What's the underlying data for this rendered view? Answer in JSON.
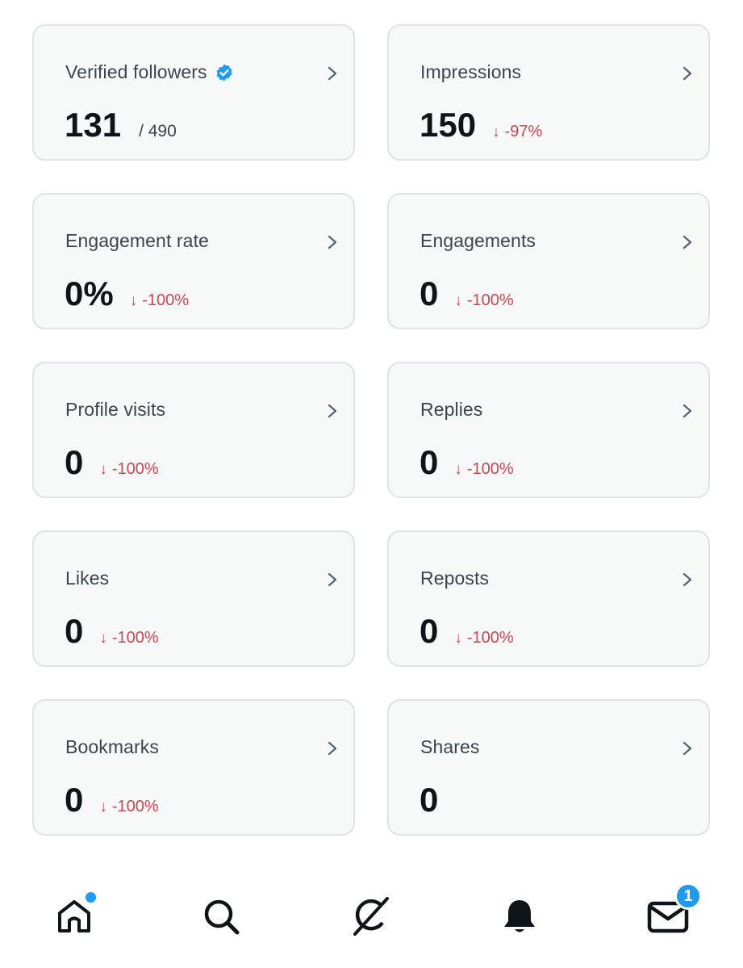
{
  "cards": [
    {
      "title": "Verified followers",
      "value": "131",
      "sub": "/ 490",
      "delta": "",
      "verified": true
    },
    {
      "title": "Impressions",
      "value": "150",
      "sub": "",
      "delta": "-97%"
    },
    {
      "title": "Engagement rate",
      "value": "0%",
      "sub": "",
      "delta": "-100%"
    },
    {
      "title": "Engagements",
      "value": "0",
      "sub": "",
      "delta": "-100%"
    },
    {
      "title": "Profile visits",
      "value": "0",
      "sub": "",
      "delta": "-100%"
    },
    {
      "title": "Replies",
      "value": "0",
      "sub": "",
      "delta": "-100%"
    },
    {
      "title": "Likes",
      "value": "0",
      "sub": "",
      "delta": "-100%"
    },
    {
      "title": "Reposts",
      "value": "0",
      "sub": "",
      "delta": "-100%"
    },
    {
      "title": "Bookmarks",
      "value": "0",
      "sub": "",
      "delta": "-100%"
    },
    {
      "title": "Shares",
      "value": "0",
      "sub": "",
      "delta": ""
    }
  ],
  "delta_arrow": "↓",
  "colors": {
    "negative": "#d04452",
    "accent": "#1d9bf0",
    "card_bg": "#f7f9f9"
  },
  "tabbar": {
    "home_icon": "home-icon",
    "search_icon": "search-icon",
    "grok_icon": "grok-icon",
    "notifications_icon": "bell-icon",
    "messages_icon": "mail-icon",
    "messages_badge": "1"
  }
}
